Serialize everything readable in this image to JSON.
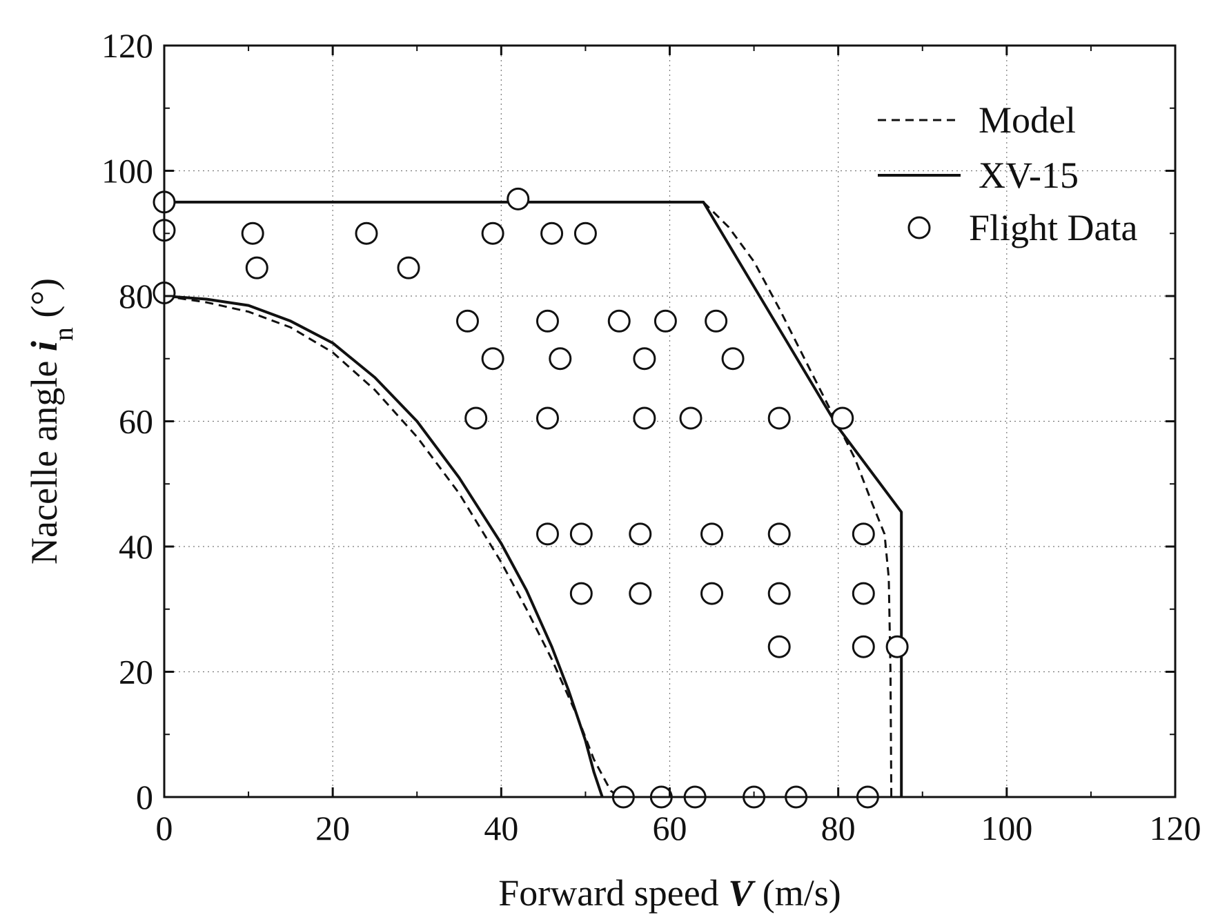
{
  "chart_data": {
    "type": "line",
    "title": "",
    "xlabel": {
      "pre": "Forward speed ",
      "var": "V",
      "post": " (m/s)"
    },
    "ylabel": {
      "pre": "Nacelle angle ",
      "var": "i",
      "sub": "n",
      "post": " (°)"
    },
    "xlim": [
      0,
      120
    ],
    "ylim": [
      0,
      120
    ],
    "xticks": [
      0,
      20,
      40,
      60,
      80,
      100,
      120
    ],
    "yticks": [
      0,
      20,
      40,
      60,
      80,
      100,
      120
    ],
    "grid": true,
    "legend_position": "top-right",
    "series": [
      {
        "name": "Model",
        "style": "dashed",
        "segments": [
          {
            "x": [
              0,
              5,
              10,
              15,
              20,
              25,
              30,
              35,
              40,
              43,
              46,
              49,
              51,
              53,
              54
            ],
            "y": [
              80,
              79,
              77.5,
              75,
              71,
              65,
              57.5,
              48.5,
              37.5,
              30,
              22,
              13,
              6,
              1,
              0
            ]
          },
          {
            "x": [
              64,
              67,
              70,
              73,
              76,
              79,
              82,
              84,
              85.5,
              86,
              86.2,
              86.3
            ],
            "y": [
              95,
              91,
              85.5,
              78,
              70,
              62,
              54,
              47,
              42,
              35,
              20,
              0
            ]
          }
        ]
      },
      {
        "name": "XV-15",
        "style": "solid",
        "segments": [
          {
            "x": [
              0,
              5,
              10,
              15,
              20,
              25,
              30,
              35,
              40,
              43,
              46,
              48,
              50,
              51,
              52
            ],
            "y": [
              80,
              79.5,
              78.5,
              76,
              72.5,
              67,
              60,
              51,
              40.5,
              33,
              24,
              17,
              9,
              4,
              0
            ]
          },
          {
            "x": [
              0,
              64,
              80,
              87.5,
              87.5
            ],
            "y": [
              95,
              95,
              59,
              45.5,
              0
            ]
          }
        ]
      },
      {
        "name": "Flight Data",
        "style": "marker",
        "points": [
          [
            0,
            95
          ],
          [
            0,
            90.5
          ],
          [
            0,
            80.5
          ],
          [
            10.5,
            90
          ],
          [
            11,
            84.5
          ],
          [
            24,
            90
          ],
          [
            29,
            84.5
          ],
          [
            42,
            95.5
          ],
          [
            39,
            90
          ],
          [
            46,
            90
          ],
          [
            50,
            90
          ],
          [
            36,
            76
          ],
          [
            45.5,
            76
          ],
          [
            54,
            76
          ],
          [
            59.5,
            76
          ],
          [
            65.5,
            76
          ],
          [
            39,
            70
          ],
          [
            47,
            70
          ],
          [
            57,
            70
          ],
          [
            67.5,
            70
          ],
          [
            37,
            60.5
          ],
          [
            45.5,
            60.5
          ],
          [
            57,
            60.5
          ],
          [
            62.5,
            60.5
          ],
          [
            73,
            60.5
          ],
          [
            80.5,
            60.5
          ],
          [
            45.5,
            42
          ],
          [
            49.5,
            42
          ],
          [
            56.5,
            42
          ],
          [
            65,
            42
          ],
          [
            73,
            42
          ],
          [
            83,
            42
          ],
          [
            49.5,
            32.5
          ],
          [
            56.5,
            32.5
          ],
          [
            65,
            32.5
          ],
          [
            73,
            32.5
          ],
          [
            83,
            32.5
          ],
          [
            73,
            24
          ],
          [
            83,
            24
          ],
          [
            87,
            24
          ],
          [
            54.5,
            0
          ],
          [
            59,
            0
          ],
          [
            63,
            0
          ],
          [
            70,
            0
          ],
          [
            75,
            0
          ],
          [
            83.5,
            0
          ]
        ]
      }
    ]
  }
}
